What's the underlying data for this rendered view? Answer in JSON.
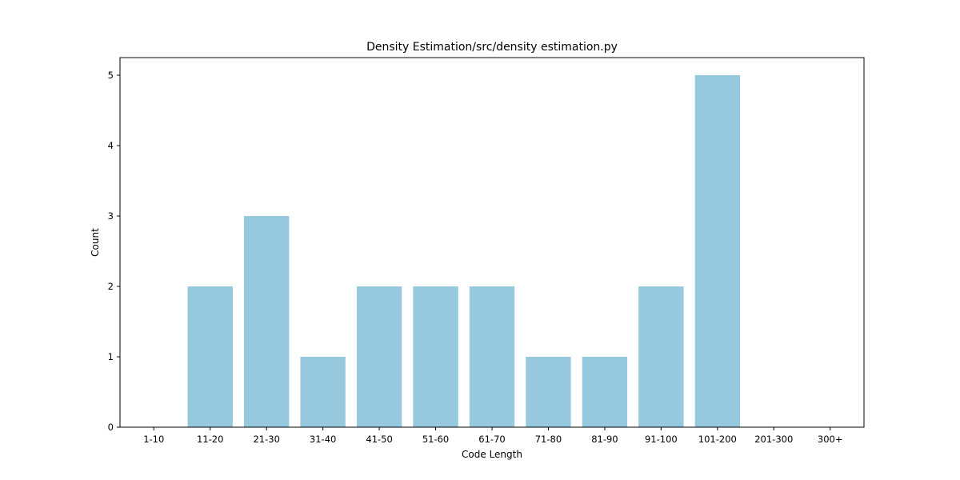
{
  "chart_data": {
    "type": "bar",
    "title": "Density Estimation/src/density estimation.py",
    "xlabel": "Code Length",
    "ylabel": "Count",
    "categories": [
      "1-10",
      "11-20",
      "21-30",
      "31-40",
      "41-50",
      "51-60",
      "61-70",
      "71-80",
      "81-90",
      "91-100",
      "101-200",
      "201-300",
      "300+"
    ],
    "values": [
      0,
      2,
      3,
      1,
      2,
      2,
      2,
      1,
      1,
      2,
      5,
      0,
      0
    ],
    "yticks": [
      "0",
      "1",
      "2",
      "3",
      "4",
      "5"
    ],
    "ylim": [
      0,
      5.25
    ],
    "bar_color": "#96c9dd",
    "grid": false,
    "legend": "none"
  }
}
